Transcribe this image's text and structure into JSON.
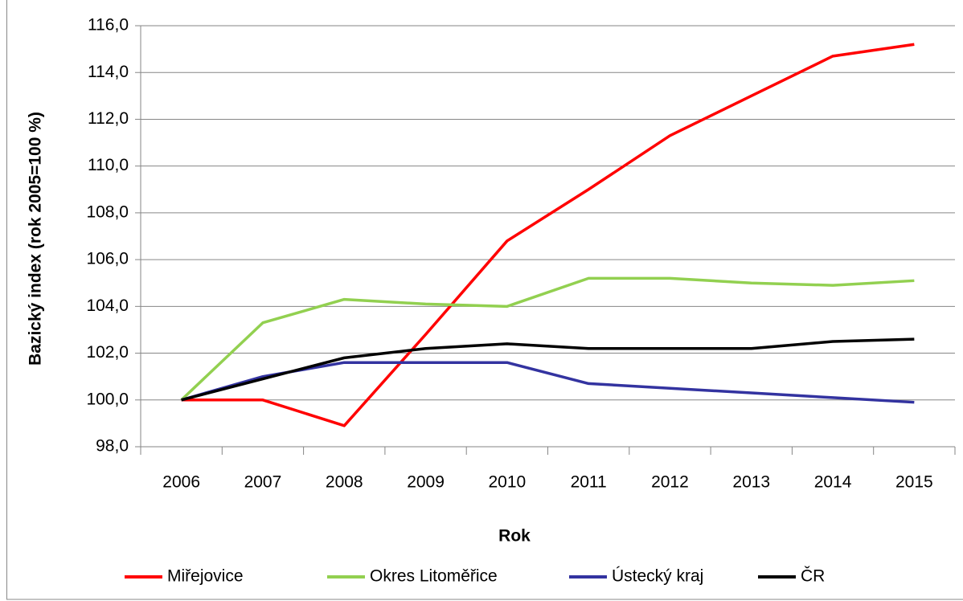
{
  "chart_data": {
    "type": "line",
    "x_label": "Rok",
    "y_label": "Bazický index (rok 2005=100  %)",
    "categories": [
      "2006",
      "2007",
      "2008",
      "2009",
      "2010",
      "2011",
      "2012",
      "2013",
      "2014",
      "2015"
    ],
    "series": [
      {
        "name": "Miřejovice",
        "color": "#ff0000",
        "values": [
          100.0,
          100.0,
          98.9,
          102.8,
          106.8,
          109.0,
          111.3,
          113.0,
          114.7,
          115.2
        ]
      },
      {
        "name": "Okres Litoměřice",
        "color": "#92d050",
        "values": [
          100.0,
          103.3,
          104.3,
          104.1,
          104.0,
          105.2,
          105.2,
          105.0,
          104.9,
          105.1
        ]
      },
      {
        "name": "Ústecký kraj",
        "color": "#3333a0",
        "values": [
          100.0,
          101.0,
          101.6,
          101.6,
          101.6,
          100.7,
          100.5,
          100.3,
          100.1,
          99.9
        ]
      },
      {
        "name": "ČR",
        "color": "#000000",
        "values": [
          100.0,
          100.9,
          101.8,
          102.2,
          102.4,
          102.2,
          102.2,
          102.2,
          102.5,
          102.6
        ]
      }
    ],
    "ylim": [
      98,
      116
    ],
    "yticks": [
      {
        "value": 98,
        "label": "98,0"
      },
      {
        "value": 100,
        "label": "100,0"
      },
      {
        "value": 102,
        "label": "102,0"
      },
      {
        "value": 104,
        "label": "104,0"
      },
      {
        "value": 106,
        "label": "106,0"
      },
      {
        "value": 108,
        "label": "108,0"
      },
      {
        "value": 110,
        "label": "110,0"
      },
      {
        "value": 112,
        "label": "112,0"
      },
      {
        "value": 114,
        "label": "114,0"
      },
      {
        "value": 116,
        "label": "116,0"
      }
    ],
    "grid": true,
    "legend": "bottom"
  }
}
